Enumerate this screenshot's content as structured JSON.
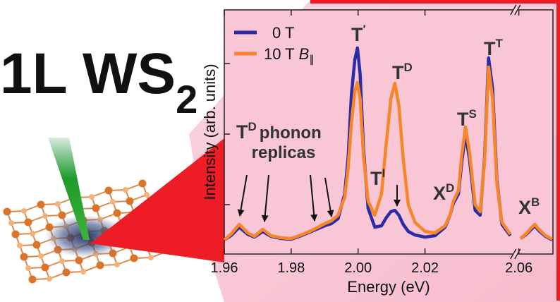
{
  "chart_data": {
    "type": "line",
    "title": {
      "text": "1L WS",
      "sub": "2"
    },
    "x_label": "Energy (eV)",
    "y_label": "Intensity (arb. units)",
    "xlim": [
      1.96,
      2.0702
    ],
    "xbreak": [
      2.0465,
      2.0595
    ],
    "xticks": [
      1.96,
      1.98,
      {
        "value": 2.0,
        "label": "2.00"
      },
      2.02,
      2.06
    ],
    "ylim": [
      0,
      3.46
    ],
    "yticks": [
      0.7,
      1.7,
      2.7
    ],
    "x": [
      1.96,
      1.962,
      1.9645,
      1.967,
      1.969,
      1.9715,
      1.974,
      1.977,
      1.98,
      1.983,
      1.986,
      1.988,
      1.99,
      1.992,
      1.994,
      1.996,
      1.997,
      1.998,
      1.999,
      1.9998,
      2.0006,
      2.0016,
      2.003,
      2.005,
      2.007,
      2.0085,
      2.0098,
      2.011,
      2.0122,
      2.0135,
      2.015,
      2.017,
      2.02,
      2.023,
      2.026,
      2.0275,
      2.0285,
      2.03,
      2.031,
      2.0321,
      2.0333,
      2.035,
      2.0365,
      2.0378,
      2.039,
      2.0402,
      2.0415,
      2.043,
      2.0455,
      2.05,
      2.0605,
      2.062,
      2.0635,
      2.0648,
      2.066,
      2.068,
      2.07
    ],
    "series": [
      {
        "name": "0 T",
        "color": "#2b2ba6",
        "values": [
          0.2,
          0.26,
          0.38,
          0.28,
          0.24,
          0.32,
          0.25,
          0.22,
          0.21,
          0.26,
          0.32,
          0.36,
          0.4,
          0.43,
          0.5,
          0.85,
          1.35,
          2.25,
          2.75,
          2.92,
          2.55,
          1.5,
          0.65,
          0.38,
          0.4,
          0.52,
          0.6,
          0.62,
          0.55,
          0.42,
          0.32,
          0.27,
          0.24,
          0.26,
          0.38,
          0.55,
          0.72,
          0.85,
          1.3,
          1.7,
          1.35,
          0.62,
          0.55,
          1.35,
          2.78,
          2.35,
          1.05,
          0.42,
          0.26,
          null,
          0.22,
          0.27,
          0.34,
          0.4,
          0.33,
          0.25,
          0.2
        ]
      },
      {
        "name": "10 T",
        "name_symbol": "B",
        "name_subscript": "∥",
        "color": "#f7862a",
        "values": [
          0.2,
          0.28,
          0.42,
          0.3,
          0.25,
          0.35,
          0.26,
          0.23,
          0.22,
          0.27,
          0.33,
          0.38,
          0.43,
          0.47,
          0.55,
          0.8,
          1.2,
          1.85,
          2.3,
          2.43,
          2.2,
          1.4,
          0.75,
          0.55,
          0.85,
          1.6,
          2.2,
          2.42,
          2.1,
          1.35,
          0.7,
          0.45,
          0.32,
          0.3,
          0.4,
          0.55,
          0.75,
          0.9,
          1.4,
          1.8,
          1.45,
          0.7,
          0.6,
          1.3,
          2.65,
          2.2,
          1.0,
          0.45,
          0.28,
          null,
          0.22,
          0.28,
          0.36,
          0.42,
          0.35,
          0.26,
          0.21
        ]
      }
    ],
    "annotations": [
      {
        "text": "T",
        "sup": "′"
      },
      {
        "text": "T",
        "sup": "D"
      },
      {
        "text": "T",
        "sup": "I"
      },
      {
        "text": "X",
        "sup": "D"
      },
      {
        "text": "T",
        "sup": "S"
      },
      {
        "text": "T",
        "sup": "T"
      },
      {
        "text": "X",
        "sup": "B"
      },
      {
        "text": "T",
        "sup": "D",
        "after": "phonon",
        "line2": "replicas"
      }
    ]
  }
}
